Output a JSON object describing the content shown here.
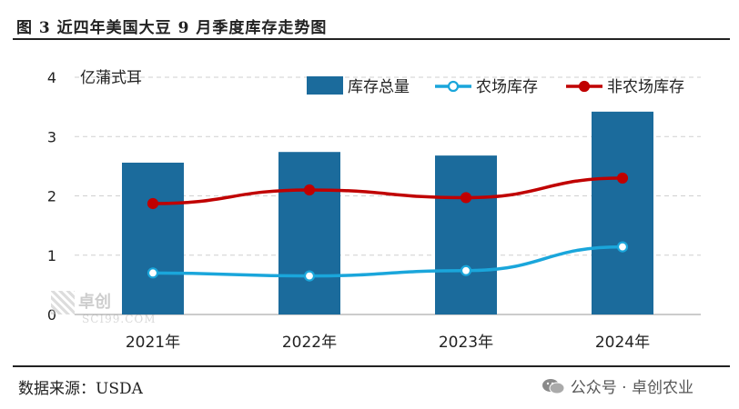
{
  "header": {
    "title": "图 3 近四年美国大豆 9 月季度库存走势图"
  },
  "footer": {
    "source": "数据来源：USDA",
    "brand": "公众号 · 卓创农业"
  },
  "watermark": {
    "line1": "卓创",
    "line2": "SCI99.COM"
  },
  "colors": {
    "bar": "#1b6b9c",
    "farm": "#1aa6db",
    "nonfarm": "#c00000",
    "grid": "#cfcfcf"
  },
  "chart_data": {
    "type": "bar",
    "categories": [
      "2021年",
      "2022年",
      "2023年",
      "2024年"
    ],
    "ylabel": "亿蒲式耳",
    "ylim": [
      0,
      4
    ],
    "yticks": [
      0,
      1,
      2,
      3,
      4
    ],
    "grid": true,
    "legend_position": "top-right",
    "series": [
      {
        "name": "库存总量",
        "type": "bar",
        "values": [
          2.56,
          2.74,
          2.68,
          3.42
        ]
      },
      {
        "name": "农场库存",
        "type": "line",
        "values": [
          0.7,
          0.65,
          0.74,
          1.14
        ]
      },
      {
        "name": "非农场库存",
        "type": "line",
        "values": [
          1.87,
          2.1,
          1.97,
          2.3
        ]
      }
    ]
  }
}
